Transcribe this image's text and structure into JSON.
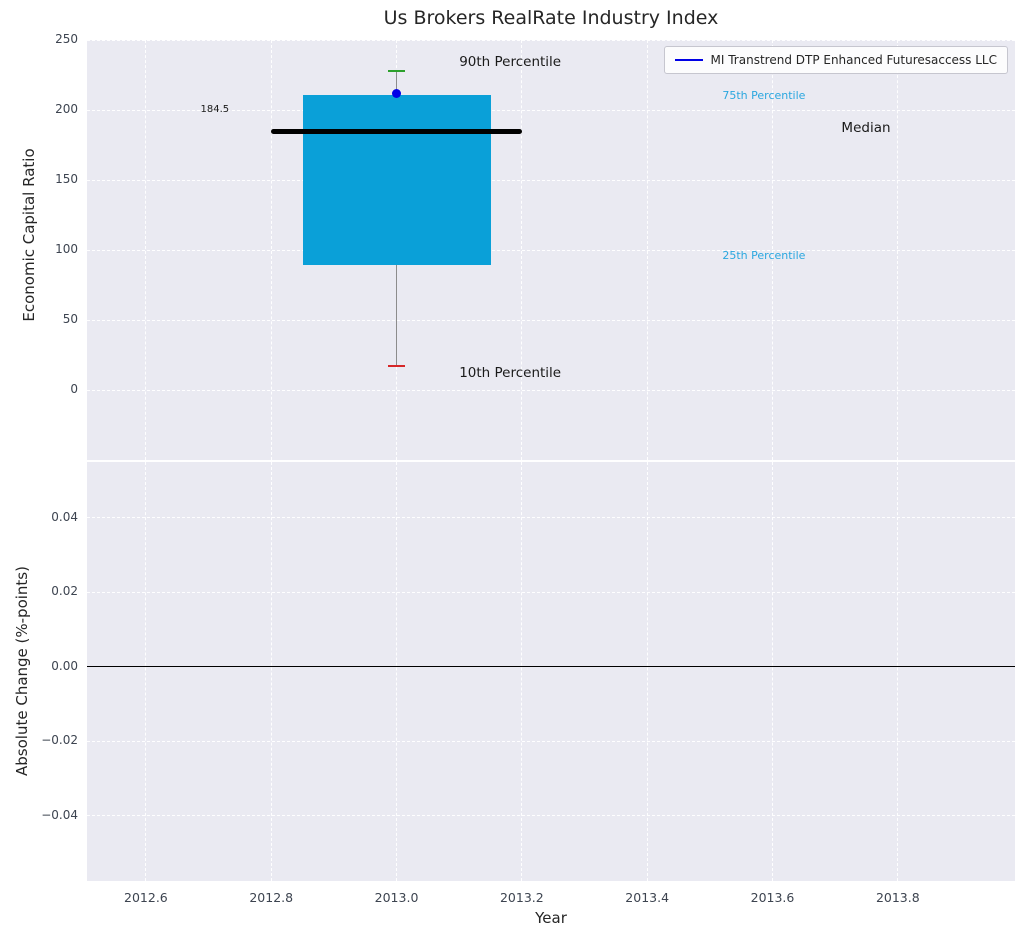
{
  "legend": {
    "label": "MI Transtrend DTP Enhanced Futuresaccess LLC",
    "line_color": "#0000e6"
  },
  "chart_data": [
    {
      "type": "boxplot",
      "title": "Us Brokers RealRate Industry Index",
      "ylabel": "Economic Capital Ratio",
      "xlim": [
        2012.506,
        2013.987
      ],
      "ylim": [
        -50,
        250
      ],
      "grid": true,
      "legend_position": "upper right",
      "xticks": [
        {
          "v": 2012.6,
          "label": "2012.6"
        },
        {
          "v": 2012.8,
          "label": "2012.8"
        },
        {
          "v": 2013.0,
          "label": "2013.0"
        },
        {
          "v": 2013.2,
          "label": "2013.2"
        },
        {
          "v": 2013.4,
          "label": "2013.4"
        },
        {
          "v": 2013.6,
          "label": "2013.6"
        },
        {
          "v": 2013.8,
          "label": "2013.8"
        }
      ],
      "yticks": [
        {
          "v": 0,
          "label": "0"
        },
        {
          "v": 50,
          "label": "50"
        },
        {
          "v": 100,
          "label": "100"
        },
        {
          "v": 150,
          "label": "150"
        },
        {
          "v": 200,
          "label": "200"
        },
        {
          "v": 250,
          "label": "250"
        }
      ],
      "box": {
        "x_center": 2013.0,
        "box_left": 2012.85,
        "box_right": 2013.15,
        "median_left": 2012.8,
        "median_right": 2013.2,
        "cap_halfwidth": 0.013,
        "p10": 17,
        "p25": 89,
        "median": 184.5,
        "p75": 211,
        "p90": 228,
        "colors": {
          "box": "#0aa0d8",
          "median": "#000000",
          "p90_cap": "#2ca02c",
          "p10_cap": "#d62728",
          "whisker": "#8c8c8c"
        }
      },
      "series": [
        {
          "name": "MI Transtrend DTP Enhanced Futuresaccess LLC",
          "x": 2013.0,
          "value": 212,
          "marker_color": "#0000e6"
        }
      ],
      "annotations": [
        {
          "text": "90th Percentile",
          "x": 2013.1,
          "y": 233,
          "color": "#1a1a1a",
          "size": 13.5,
          "align": "left"
        },
        {
          "text": "75th Percentile",
          "x": 2013.52,
          "y": 209,
          "color": "#2aa7df",
          "size": 11,
          "align": "left"
        },
        {
          "text": "Median",
          "x": 2013.71,
          "y": 186,
          "color": "#1a1a1a",
          "size": 13.5,
          "align": "left"
        },
        {
          "text": "25th Percentile",
          "x": 2013.52,
          "y": 95,
          "color": "#2aa7df",
          "size": 11,
          "align": "left"
        },
        {
          "text": "10th Percentile",
          "x": 2013.1,
          "y": 11,
          "color": "#1a1a1a",
          "size": 13.5,
          "align": "left"
        },
        {
          "text": "184.5",
          "x": 2012.71,
          "y": 199,
          "color": "#1a1a1a",
          "size": 10,
          "align": "center"
        }
      ]
    },
    {
      "type": "line",
      "ylabel": "Absolute Change (%-points)",
      "xlabel": "Year",
      "xlim": [
        2012.506,
        2013.987
      ],
      "ylim": [
        -0.0575,
        0.055
      ],
      "grid": true,
      "yticks": [
        {
          "v": -0.04,
          "label": "−0.04"
        },
        {
          "v": -0.02,
          "label": "−0.02"
        },
        {
          "v": 0,
          "label": "0.00"
        },
        {
          "v": 0.02,
          "label": "0.02"
        },
        {
          "v": 0.04,
          "label": "0.04"
        }
      ],
      "zero_line": {
        "y": 0,
        "color": "#000000"
      }
    }
  ]
}
